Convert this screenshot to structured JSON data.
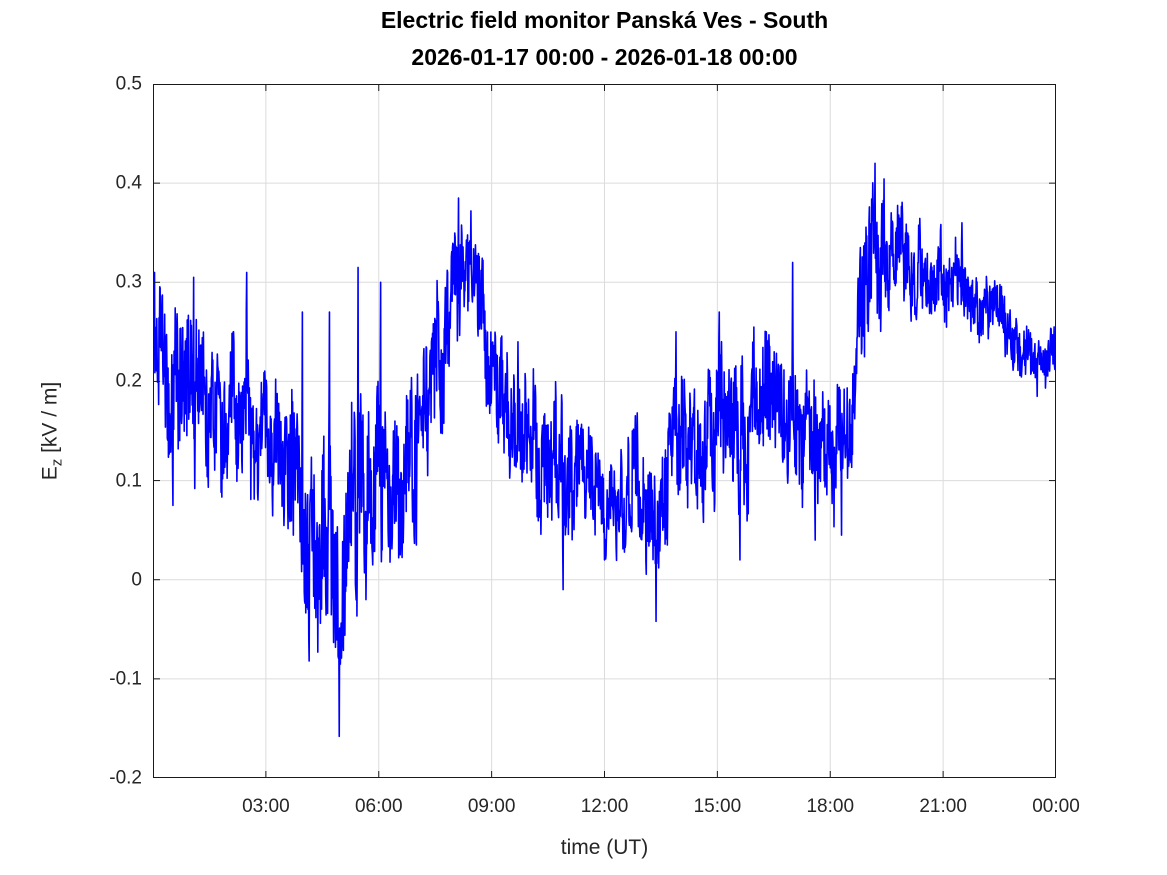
{
  "chart_data": {
    "type": "line",
    "title": "Electric field monitor Panská Ves - South",
    "subtitle": "2026-01-17 00:00 - 2026-01-18 00:00",
    "xlabel": "time (UT)",
    "ylabel_base": "E",
    "ylabel_sub": "z",
    "ylabel_units": " [kV / m]",
    "x_range_hours": [
      0,
      24
    ],
    "ylim": [
      -0.2,
      0.5
    ],
    "x_tick_hours": [
      3,
      6,
      9,
      12,
      15,
      18,
      21,
      24
    ],
    "x_tick_labels": [
      "03:00",
      "06:00",
      "09:00",
      "12:00",
      "15:00",
      "18:00",
      "21:00",
      "00:00"
    ],
    "y_ticks": [
      0.5,
      0.4,
      0.3,
      0.2,
      0.1,
      0,
      -0.1,
      -0.2
    ],
    "y_tick_labels": [
      "0.5",
      "0.4",
      "0.3",
      "0.2",
      "0.1",
      "0",
      "-0.1",
      "-0.2"
    ],
    "grid": true,
    "legend": "none",
    "line_color": "#0000ff",
    "grid_color": "#dcdcdc",
    "axis_color": "#1a1a1a",
    "tick_label_color": "#262626",
    "series": [
      {
        "name": "Ez",
        "sample_interval_hours": 0.5,
        "mean": [
          0.27,
          0.17,
          0.18,
          0.18,
          0.16,
          0.17,
          0.15,
          0.13,
          0.06,
          0.04,
          0.01,
          0.1,
          0.13,
          0.13,
          0.12,
          0.2,
          0.29,
          0.3,
          0.22,
          0.16,
          0.15,
          0.12,
          0.1,
          0.09,
          0.08,
          0.08,
          0.09,
          0.07,
          0.12,
          0.14,
          0.15,
          0.14,
          0.16,
          0.15,
          0.17,
          0.14,
          0.13,
          0.15,
          0.3,
          0.33,
          0.32,
          0.31,
          0.3,
          0.3,
          0.28,
          0.26,
          0.24,
          0.22,
          0.23
        ],
        "half_range": [
          0.05,
          0.09,
          0.09,
          0.08,
          0.07,
          0.08,
          0.06,
          0.09,
          0.09,
          0.11,
          0.11,
          0.12,
          0.1,
          0.09,
          0.08,
          0.08,
          0.07,
          0.06,
          0.06,
          0.07,
          0.07,
          0.08,
          0.08,
          0.06,
          0.06,
          0.06,
          0.07,
          0.08,
          0.08,
          0.07,
          0.08,
          0.08,
          0.08,
          0.08,
          0.08,
          0.07,
          0.07,
          0.07,
          0.1,
          0.06,
          0.05,
          0.05,
          0.05,
          0.04,
          0.04,
          0.035,
          0.035,
          0.03,
          0.03
        ],
        "extremes": [
          {
            "t": 0.04,
            "v": 0.31
          },
          {
            "t": 0.53,
            "v": 0.075
          },
          {
            "t": 1.08,
            "v": 0.305
          },
          {
            "t": 2.49,
            "v": 0.31
          },
          {
            "t": 3.73,
            "v": 0.045
          },
          {
            "t": 3.97,
            "v": 0.27
          },
          {
            "t": 4.15,
            "v": -0.082
          },
          {
            "t": 4.69,
            "v": 0.27
          },
          {
            "t": 4.95,
            "v": -0.158
          },
          {
            "t": 5.45,
            "v": 0.315
          },
          {
            "t": 6.05,
            "v": 0.3
          },
          {
            "t": 7.0,
            "v": 0.035
          },
          {
            "t": 8.12,
            "v": 0.385
          },
          {
            "t": 8.45,
            "v": 0.372
          },
          {
            "t": 9.7,
            "v": 0.24
          },
          {
            "t": 10.9,
            "v": -0.01
          },
          {
            "t": 12.0,
            "v": 0.02
          },
          {
            "t": 13.37,
            "v": -0.042
          },
          {
            "t": 13.9,
            "v": 0.25
          },
          {
            "t": 15.05,
            "v": 0.27
          },
          {
            "t": 15.6,
            "v": 0.02
          },
          {
            "t": 17.0,
            "v": 0.32
          },
          {
            "t": 17.6,
            "v": 0.04
          },
          {
            "t": 18.3,
            "v": 0.045
          },
          {
            "t": 19.19,
            "v": 0.42
          },
          {
            "t": 21.5,
            "v": 0.36
          },
          {
            "t": 23.5,
            "v": 0.185
          },
          {
            "t": 23.95,
            "v": 0.255
          }
        ]
      }
    ]
  }
}
